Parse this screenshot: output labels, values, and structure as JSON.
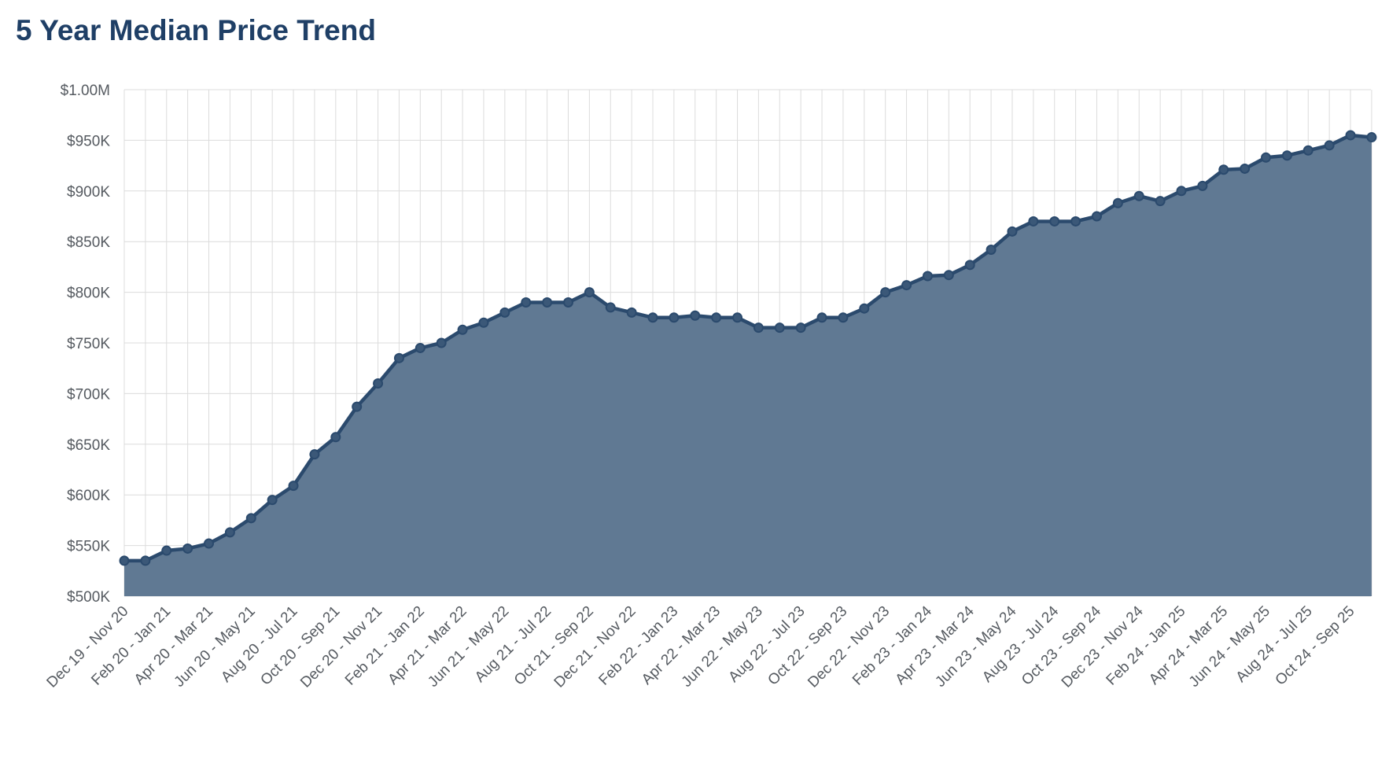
{
  "page": {
    "title": "5 Year Median Price Trend"
  },
  "colors": {
    "title": "#1f3f66",
    "line": "#2b4a6d",
    "area": "#5d7691",
    "point_fill": "#3b5878",
    "grid": "#dcdcdc",
    "tick_text": "#555a60"
  },
  "chart_data": {
    "type": "area",
    "title": "5 Year Median Price Trend",
    "xlabel": "",
    "ylabel": "",
    "grid": true,
    "legend": "none",
    "ylim": [
      500000,
      1000000
    ],
    "y_ticks": [
      500000,
      550000,
      600000,
      650000,
      700000,
      750000,
      800000,
      850000,
      900000,
      950000,
      1000000
    ],
    "y_tick_labels": [
      "$500K",
      "$550K",
      "$600K",
      "$650K",
      "$700K",
      "$750K",
      "$800K",
      "$850K",
      "$900K",
      "$950K",
      "$1.00M"
    ],
    "x_tick_labels": [
      "Dec 19 - Nov 20",
      "Feb 20 - Jan 21",
      "Apr 20 - Mar 21",
      "Jun 20 - May 21",
      "Aug 20 - Jul 21",
      "Oct 20 - Sep 21",
      "Dec 20 - Nov 21",
      "Feb 21 - Jan 22",
      "Apr 21 - Mar 22",
      "Jun 21 - May 22",
      "Aug 21 - Jul 22",
      "Oct 21 - Sep 22",
      "Dec 21 - Nov 22",
      "Feb 22 - Jan 23",
      "Apr 22 - Mar 23",
      "Jun 22 - May 23",
      "Aug 22 - Jul 23",
      "Oct 22 - Sep 23",
      "Dec 22 - Nov 23",
      "Feb 23 - Jan 24",
      "Apr 23 - Mar 24",
      "Jun 23 - May 24",
      "Aug 23 - Jul 24",
      "Oct 23 - Sep 24",
      "Dec 23 - Nov 24",
      "Feb 24 - Jan 25",
      "Apr 24 - Mar 25",
      "Jun 24 - May 25",
      "Aug 24 - Jul 25",
      "Oct 24 - Sep 25"
    ],
    "series": [
      {
        "values": [
          535000,
          535000,
          545000,
          547000,
          552000,
          563000,
          577000,
          595000,
          609000,
          640000,
          657000,
          687000,
          710000,
          735000,
          745000,
          750000,
          763000,
          770000,
          780000,
          790000,
          790000,
          790000,
          800000,
          785000,
          780000,
          775000,
          775000,
          777000,
          775000,
          775000,
          765000,
          765000,
          765000,
          775000,
          775000,
          784000,
          800000,
          807000,
          816000,
          817000,
          827000,
          842000,
          860000,
          870000,
          870000,
          870000,
          875000,
          888000,
          895000,
          890000,
          900000,
          905000,
          921000,
          922000,
          933000,
          935000,
          940000,
          945000,
          955000,
          953000
        ]
      }
    ]
  }
}
